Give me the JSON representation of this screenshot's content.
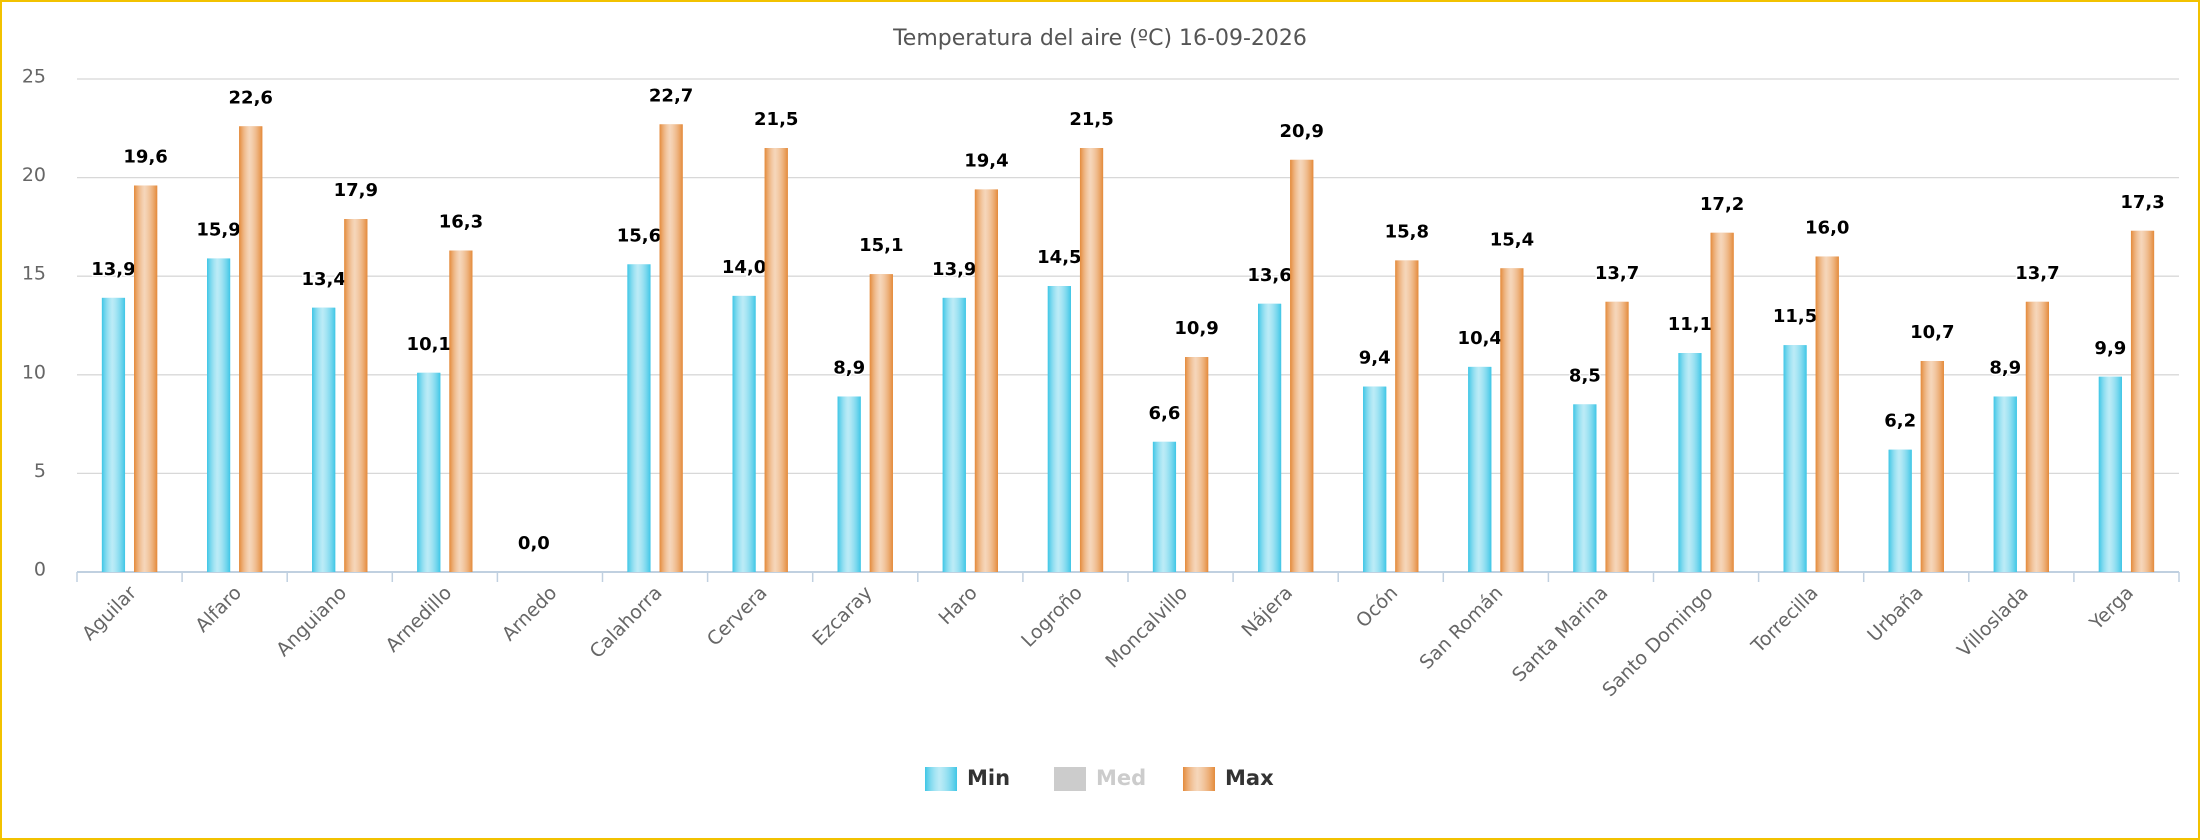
{
  "chart_data": {
    "type": "bar",
    "title": "Temperatura del aire (ºC) 16-09-2026",
    "categories": [
      "Aguilar",
      "Alfaro",
      "Anguiano",
      "Arnedillo",
      "Arnedo",
      "Calahorra",
      "Cervera",
      "Ezcaray",
      "Haro",
      "Logroño",
      "Moncalvillo",
      "Nájera",
      "Ocón",
      "San Román",
      "Santa Marina",
      "Santo Domingo",
      "Torrecilla",
      "Urbaña",
      "Villoslada",
      "Yerga"
    ],
    "series": [
      {
        "name": "Min",
        "color": "#3ec6e6",
        "visible": true,
        "values": [
          13.9,
          15.9,
          13.4,
          10.1,
          0,
          15.6,
          14.0,
          8.9,
          13.9,
          14.5,
          6.6,
          13.6,
          9.4,
          10.4,
          8.5,
          11.1,
          11.5,
          6.2,
          8.9,
          9.9
        ],
        "value_labels": [
          "13,9",
          "15,9",
          "13,4",
          "10,1",
          "0,0",
          "15,6",
          "14,0",
          "8,9",
          "13,9",
          "14,5",
          "6,6",
          "13,6",
          "9,4",
          "10,4",
          "8,5",
          "11,1",
          "11,5",
          "6,2",
          "8,9",
          "9,9"
        ]
      },
      {
        "name": "Med",
        "color": "#cccccc",
        "visible": false,
        "values": [
          null,
          null,
          null,
          null,
          null,
          null,
          null,
          null,
          null,
          null,
          null,
          null,
          null,
          null,
          null,
          null,
          null,
          null,
          null,
          null
        ]
      },
      {
        "name": "Max",
        "color": "#e48a3a",
        "visible": true,
        "values": [
          19.6,
          22.6,
          17.9,
          16.3,
          null,
          22.7,
          21.5,
          15.1,
          19.4,
          21.5,
          10.9,
          20.9,
          15.8,
          15.4,
          13.7,
          17.2,
          16.0,
          10.7,
          13.7,
          17.3
        ],
        "value_labels": [
          "19,6",
          "22,6",
          "17,9",
          "16,3",
          null,
          "22,7",
          "21,5",
          "15,1",
          "19,4",
          "21,5",
          "10,9",
          "20,9",
          "15,8",
          "15,4",
          "13,7",
          "17,2",
          "16,0",
          "10,7",
          "13,7",
          "17,3"
        ]
      }
    ],
    "ylim": [
      0,
      25
    ],
    "yticks": [
      0,
      5,
      10,
      15,
      20,
      25
    ],
    "grid": true
  }
}
